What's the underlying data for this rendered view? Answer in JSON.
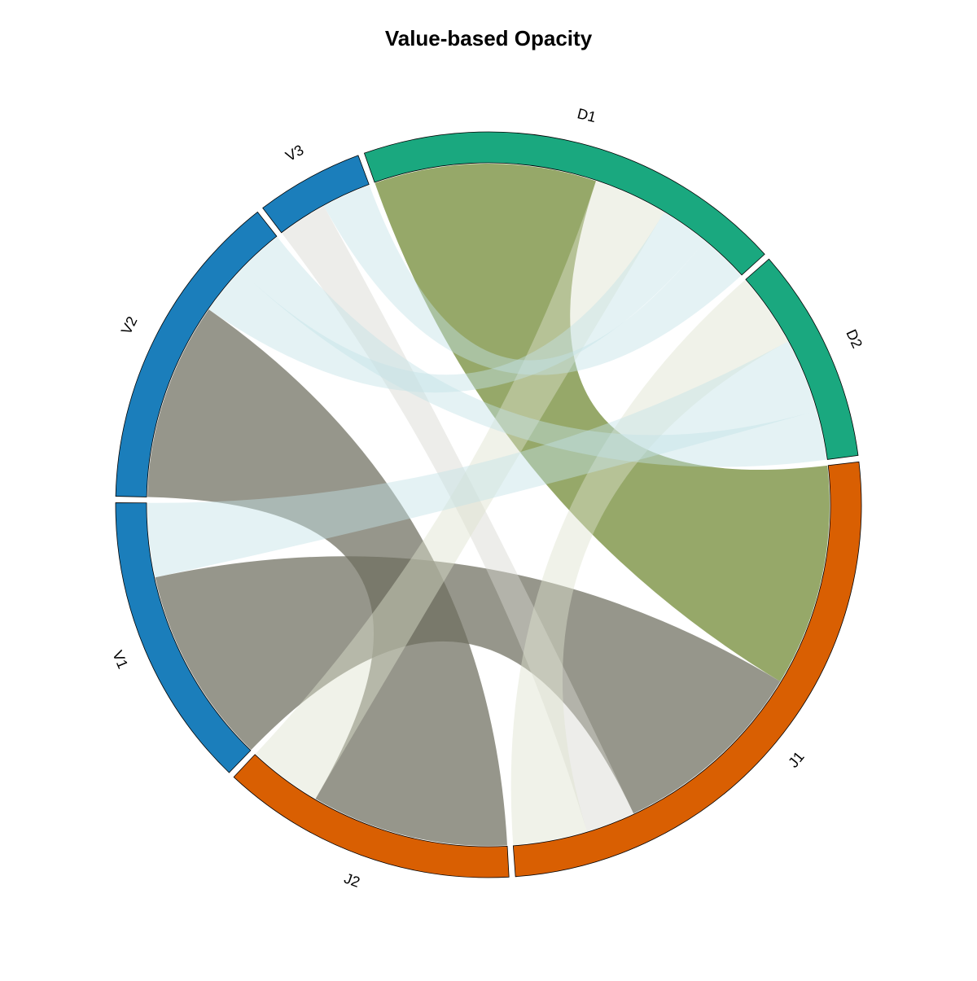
{
  "chart_data": {
    "type": "chord",
    "title": "Value-based Opacity",
    "sectors": [
      {
        "name": "J1",
        "color": "#D95F02"
      },
      {
        "name": "J2",
        "color": "#D95F02"
      },
      {
        "name": "V1",
        "color": "#1B7EBB"
      },
      {
        "name": "V2",
        "color": "#1B7EBB"
      },
      {
        "name": "V3",
        "color": "#1B7EBB"
      },
      {
        "name": "D1",
        "color": "#1AA87F"
      },
      {
        "name": "D2",
        "color": "#1AA87F"
      }
    ],
    "links": [
      {
        "from": "J1",
        "to": "D1",
        "value": 9,
        "color": "#6E862F",
        "opacity": 0.72
      },
      {
        "from": "J1",
        "to": "V1",
        "value": 8,
        "color": "#6E6E5E",
        "opacity": 0.72
      },
      {
        "from": "J2",
        "to": "V2",
        "value": 8,
        "color": "#6E6E5E",
        "opacity": 0.72
      },
      {
        "from": "J1",
        "to": "V3",
        "value": 2,
        "color": "#D8D8D0",
        "opacity": 0.45
      },
      {
        "from": "J1",
        "to": "D2",
        "value": 3,
        "color": "#DDE2CF",
        "opacity": 0.45
      },
      {
        "from": "J2",
        "to": "D1",
        "value": 3,
        "color": "#DDE2CF",
        "opacity": 0.45
      },
      {
        "from": "V1",
        "to": "D2",
        "value": 3,
        "color": "#C4E3E7",
        "opacity": 0.45
      },
      {
        "from": "V2",
        "to": "D1",
        "value": 2,
        "color": "#C4E3E7",
        "opacity": 0.45
      },
      {
        "from": "V2",
        "to": "D2",
        "value": 2,
        "color": "#C4E3E7",
        "opacity": 0.45
      },
      {
        "from": "V3",
        "to": "D1",
        "value": 2,
        "color": "#C4E3E7",
        "opacity": 0.45
      }
    ]
  }
}
